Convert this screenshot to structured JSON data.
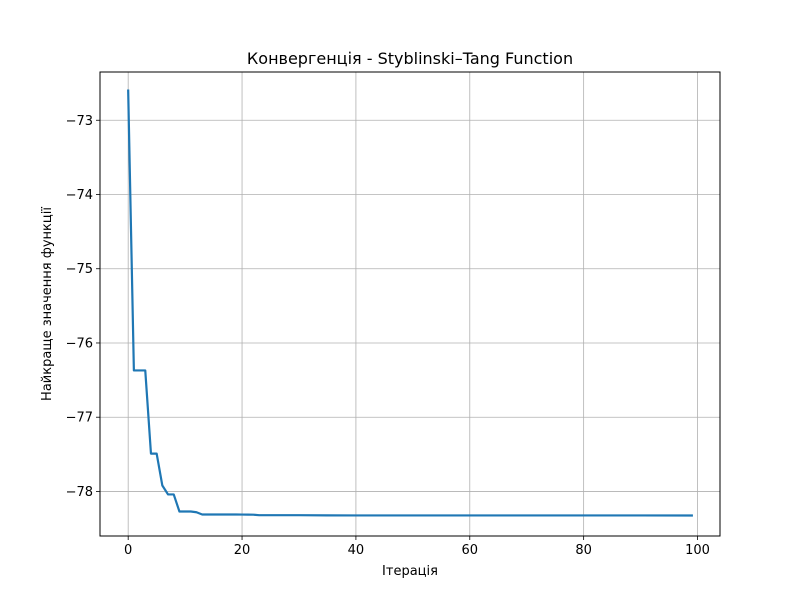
{
  "chart_data": {
    "type": "line",
    "title": "Конвергенція - Styblinski–Tang Function",
    "xlabel": "Ітерація",
    "ylabel": "Найкраще значення функції",
    "xlim": [
      -4.95,
      103.95
    ],
    "ylim": [
      -78.6,
      -72.35
    ],
    "xticks": [
      0,
      20,
      40,
      60,
      80,
      100
    ],
    "xtick_labels": [
      "0",
      "20",
      "40",
      "60",
      "80",
      "100"
    ],
    "yticks": [
      -78,
      -77,
      -76,
      -75,
      -74,
      -73
    ],
    "ytick_labels": [
      "−78",
      "−77",
      "−76",
      "−75",
      "−74",
      "−73"
    ],
    "grid": true,
    "series": [
      {
        "color": "#1f77b4",
        "x": [
          0,
          1,
          2,
          3,
          4,
          5,
          6,
          7,
          8,
          9,
          10,
          11,
          12,
          13,
          14,
          15,
          16,
          17,
          18,
          19,
          20,
          21,
          22,
          23,
          24,
          25,
          30,
          35,
          40,
          45,
          50,
          60,
          70,
          80,
          90,
          99
        ],
        "y": [
          -72.6,
          -76.37,
          -76.37,
          -76.37,
          -77.49,
          -77.49,
          -77.92,
          -78.04,
          -78.04,
          -78.27,
          -78.27,
          -78.27,
          -78.28,
          -78.31,
          -78.31,
          -78.31,
          -78.31,
          -78.31,
          -78.31,
          -78.31,
          -78.311,
          -78.312,
          -78.313,
          -78.32,
          -78.32,
          -78.32,
          -78.32,
          -78.322,
          -78.323,
          -78.323,
          -78.323,
          -78.323,
          -78.323,
          -78.323,
          -78.323,
          -78.324
        ]
      }
    ]
  }
}
